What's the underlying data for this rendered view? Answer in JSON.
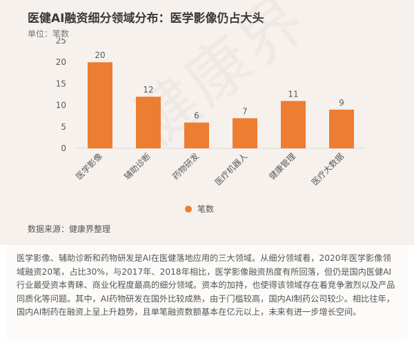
{
  "title": "医健AI融资细分领域分布：医学影像仍占大头",
  "unit": "单位：笔数",
  "watermark": "健康界",
  "source": "数据来源：健康界整理",
  "colors": {
    "bar": "#ed7d31",
    "axis_text": "#595959",
    "grid": "#d9d9d9"
  },
  "chart_data": {
    "type": "bar",
    "categories": [
      "医学影像",
      "辅助诊断",
      "药物研发",
      "医疗机器人",
      "健康管理",
      "医疗大数据"
    ],
    "series": [
      {
        "name": "笔数",
        "values": [
          20,
          12,
          6,
          7,
          11,
          9
        ]
      }
    ],
    "ylim": [
      0,
      25
    ],
    "yticks": [
      0,
      5,
      10,
      15,
      20,
      25
    ],
    "grid": false,
    "legend": "bottom"
  },
  "description": "医学影像、辅助诊断和药物研发是AI在医健落地应用的三大领域。从细分领域看，2020年医学影像领域融资20笔，占比30%，与2017年、2018年相比，医学影像融资热度有所回落，但仍是国内医健AI行业最受资本青睐、商业化程度最高的细分领域。资本的加持，也使得该领域存在着竞争激烈以及产品同质化等问题。其中，AI药物研发在国外比较成熟，由于门槛较高，国内AI制药公司较少。相比往年，国内AI制药在融资上呈上升趋势，且单笔融资数额基本在亿元以上，未来有进一步增长空间。"
}
